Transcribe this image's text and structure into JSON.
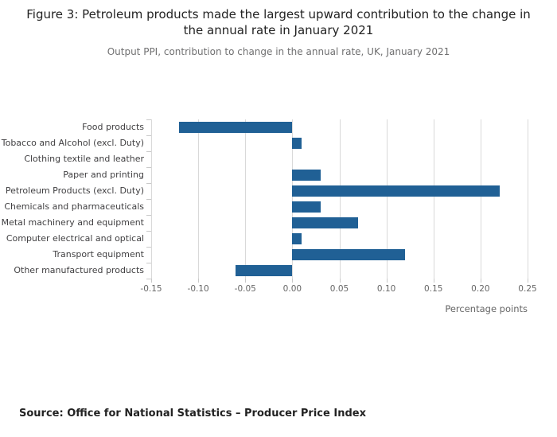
{
  "header": {
    "title": "Figure 3: Petroleum products made the largest upward contribution to the change in the annual rate in January 2021",
    "subtitle": "Output PPI, contribution to change in the annual rate, UK, January 2021"
  },
  "footer": {
    "source": "Source: Office for National Statistics – Producer Price Index"
  },
  "chart_data": {
    "type": "bar",
    "orientation": "horizontal",
    "title": "Figure 3: Petroleum products made the largest upward contribution to the change in the annual rate in January 2021",
    "subtitle": "Output PPI, contribution to change in the annual rate, UK, January 2021",
    "categories": [
      "Food products",
      "Tobacco and Alcohol (excl. Duty)",
      "Clothing textile and leather",
      "Paper and printing",
      "Petroleum Products (excl. Duty)",
      "Chemicals and pharmaceuticals",
      "Metal machinery and equipment",
      "Computer electrical and optical",
      "Transport equipment",
      "Other manufactured products"
    ],
    "values": [
      -0.12,
      0.01,
      0.0,
      0.03,
      0.22,
      0.03,
      0.07,
      0.01,
      0.12,
      -0.06
    ],
    "xlabel": "Percentage points",
    "xlim": [
      -0.15,
      0.25
    ],
    "xticks": [
      -0.15,
      -0.1,
      -0.05,
      0.0,
      0.05,
      0.1,
      0.15,
      0.2,
      0.25
    ],
    "bar_color": "#206095",
    "gridline_color": "#d9d9d9",
    "grid": true,
    "legend": "none"
  }
}
